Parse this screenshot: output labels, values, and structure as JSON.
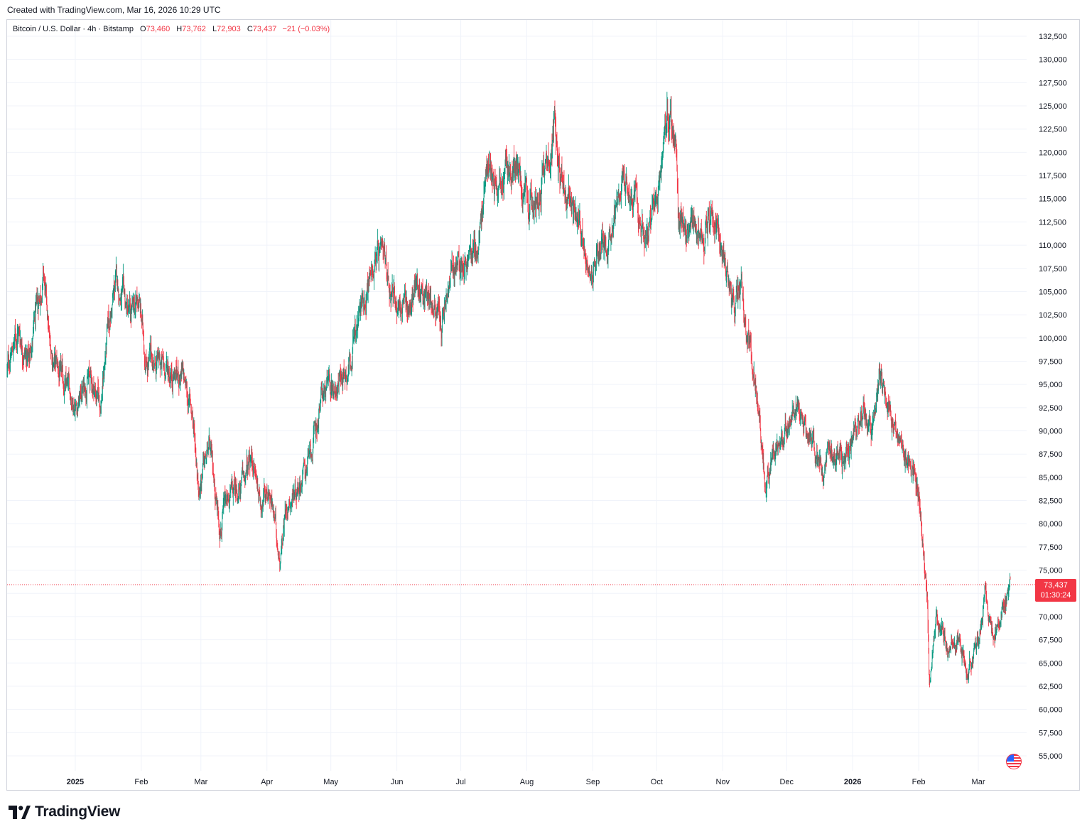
{
  "header": {
    "created": "Created with TradingView.com, Mar 16, 2026 10:29 UTC"
  },
  "legend": {
    "symbol": "Bitcoin / U.S. Dollar · 4h · Bitstamp",
    "o_label": "O",
    "o": "73,460",
    "h_label": "H",
    "h": "73,762",
    "l_label": "L",
    "l": "72,903",
    "c_label": "C",
    "c": "73,437",
    "change": "−21 (−0.03%)"
  },
  "price_tag": {
    "price": "73,437",
    "countdown": "01:30:24"
  },
  "branding": {
    "name": "TradingView"
  },
  "colors": {
    "up": "#089981",
    "down": "#f23645",
    "grid": "#f0f3fa",
    "axis_text": "#131722"
  },
  "chart_data": {
    "type": "line",
    "style": "candlestick",
    "interval": "4h",
    "ylim": [
      53500,
      134000
    ],
    "y_ticks": [
      "55,000",
      "57,500",
      "60,000",
      "62,500",
      "65,000",
      "67,500",
      "70,000",
      "72,500",
      "75,000",
      "77,500",
      "80,000",
      "82,500",
      "85,000",
      "87,500",
      "90,000",
      "92,500",
      "95,000",
      "97,500",
      "100,000",
      "102,500",
      "105,000",
      "107,500",
      "110,000",
      "112,500",
      "115,000",
      "117,500",
      "120,000",
      "122,500",
      "125,000",
      "127,500",
      "130,000",
      "132,500"
    ],
    "y_tick_values": [
      55000,
      57500,
      60000,
      62500,
      65000,
      67500,
      70000,
      72500,
      75000,
      77500,
      80000,
      82500,
      85000,
      87500,
      90000,
      92500,
      95000,
      97500,
      100000,
      102500,
      105000,
      107500,
      110000,
      112500,
      115000,
      117500,
      120000,
      122500,
      125000,
      127500,
      130000,
      132500
    ],
    "x_ticks": [
      {
        "label": "2025",
        "date": "2025-01-01",
        "bold": true
      },
      {
        "label": "Feb",
        "date": "2025-02-01"
      },
      {
        "label": "Mar",
        "date": "2025-03-01"
      },
      {
        "label": "Apr",
        "date": "2025-04-01"
      },
      {
        "label": "May",
        "date": "2025-05-01"
      },
      {
        "label": "Jun",
        "date": "2025-06-01"
      },
      {
        "label": "Jul",
        "date": "2025-07-01"
      },
      {
        "label": "Aug",
        "date": "2025-08-01"
      },
      {
        "label": "Sep",
        "date": "2025-09-01"
      },
      {
        "label": "Oct",
        "date": "2025-10-01"
      },
      {
        "label": "Nov",
        "date": "2025-11-01"
      },
      {
        "label": "Dec",
        "date": "2025-12-01"
      },
      {
        "label": "2026",
        "date": "2026-01-01",
        "bold": true
      },
      {
        "label": "Feb",
        "date": "2026-02-01"
      },
      {
        "label": "Mar",
        "date": "2026-03-01"
      }
    ],
    "xlim": [
      "2024-11-30",
      "2026-03-16"
    ],
    "last_price": 73437,
    "series": [
      {
        "x": [
          "2024-11-30",
          "2024-12-05",
          "2024-12-10",
          "2024-12-15",
          "2024-12-17",
          "2024-12-20",
          "2024-12-26",
          "2025-01-02",
          "2025-01-07",
          "2025-01-13",
          "2025-01-16",
          "2025-01-20",
          "2025-01-27",
          "2025-01-31",
          "2025-02-03",
          "2025-02-10",
          "2025-02-20",
          "2025-02-25",
          "2025-02-28",
          "2025-03-02",
          "2025-03-05",
          "2025-03-10",
          "2025-03-15",
          "2025-03-20",
          "2025-03-25",
          "2025-03-29",
          "2025-04-02",
          "2025-04-07",
          "2025-04-10",
          "2025-04-15",
          "2025-04-22",
          "2025-04-27",
          "2025-05-03",
          "2025-05-09",
          "2025-05-15",
          "2025-05-22",
          "2025-05-27",
          "2025-06-01",
          "2025-06-06",
          "2025-06-10",
          "2025-06-16",
          "2025-06-22",
          "2025-06-27",
          "2025-07-03",
          "2025-07-09",
          "2025-07-14",
          "2025-07-20",
          "2025-07-27",
          "2025-08-02",
          "2025-08-08",
          "2025-08-14",
          "2025-08-19",
          "2025-08-25",
          "2025-09-01",
          "2025-09-07",
          "2025-09-13",
          "2025-09-18",
          "2025-09-25",
          "2025-10-01",
          "2025-10-06",
          "2025-10-10",
          "2025-10-11",
          "2025-10-15",
          "2025-10-20",
          "2025-10-27",
          "2025-11-01",
          "2025-11-05",
          "2025-11-10",
          "2025-11-14",
          "2025-11-18",
          "2025-11-21",
          "2025-11-26",
          "2025-12-01",
          "2025-12-04",
          "2025-12-10",
          "2025-12-15",
          "2025-12-18",
          "2025-12-25",
          "2026-01-01",
          "2026-01-05",
          "2026-01-10",
          "2026-01-14",
          "2026-01-18",
          "2026-01-21",
          "2026-01-25",
          "2026-01-29",
          "2026-02-01",
          "2026-02-03",
          "2026-02-05",
          "2026-02-06",
          "2026-02-09",
          "2026-02-15",
          "2026-02-20",
          "2026-02-24",
          "2026-03-01",
          "2026-03-04",
          "2026-03-08",
          "2026-03-12",
          "2026-03-16"
        ],
        "values": [
          96500,
          101000,
          97500,
          104000,
          107000,
          99000,
          95000,
          93000,
          96000,
          93000,
          100000,
          106000,
          102000,
          104000,
          98000,
          97000,
          96000,
          92000,
          84000,
          86000,
          88000,
          80000,
          83000,
          84000,
          87000,
          82500,
          84000,
          76500,
          82000,
          84000,
          87500,
          94000,
          95000,
          97000,
          103000,
          109000,
          107000,
          104000,
          103000,
          105500,
          105000,
          101000,
          107000,
          108500,
          109500,
          119000,
          117500,
          118000,
          113000,
          117000,
          122500,
          116000,
          112000,
          108000,
          110500,
          115000,
          116000,
          111000,
          114000,
          124500,
          121000,
          113000,
          112000,
          110000,
          114000,
          110000,
          103500,
          104500,
          99000,
          93000,
          84500,
          88000,
          91000,
          92000,
          90000,
          88000,
          86000,
          87500,
          88500,
          92000,
          91000,
          96000,
          93000,
          90000,
          88000,
          87000,
          84000,
          78000,
          72000,
          62500,
          69500,
          67000,
          68000,
          64000,
          68000,
          72500,
          67500,
          71000,
          73437
        ]
      }
    ]
  }
}
